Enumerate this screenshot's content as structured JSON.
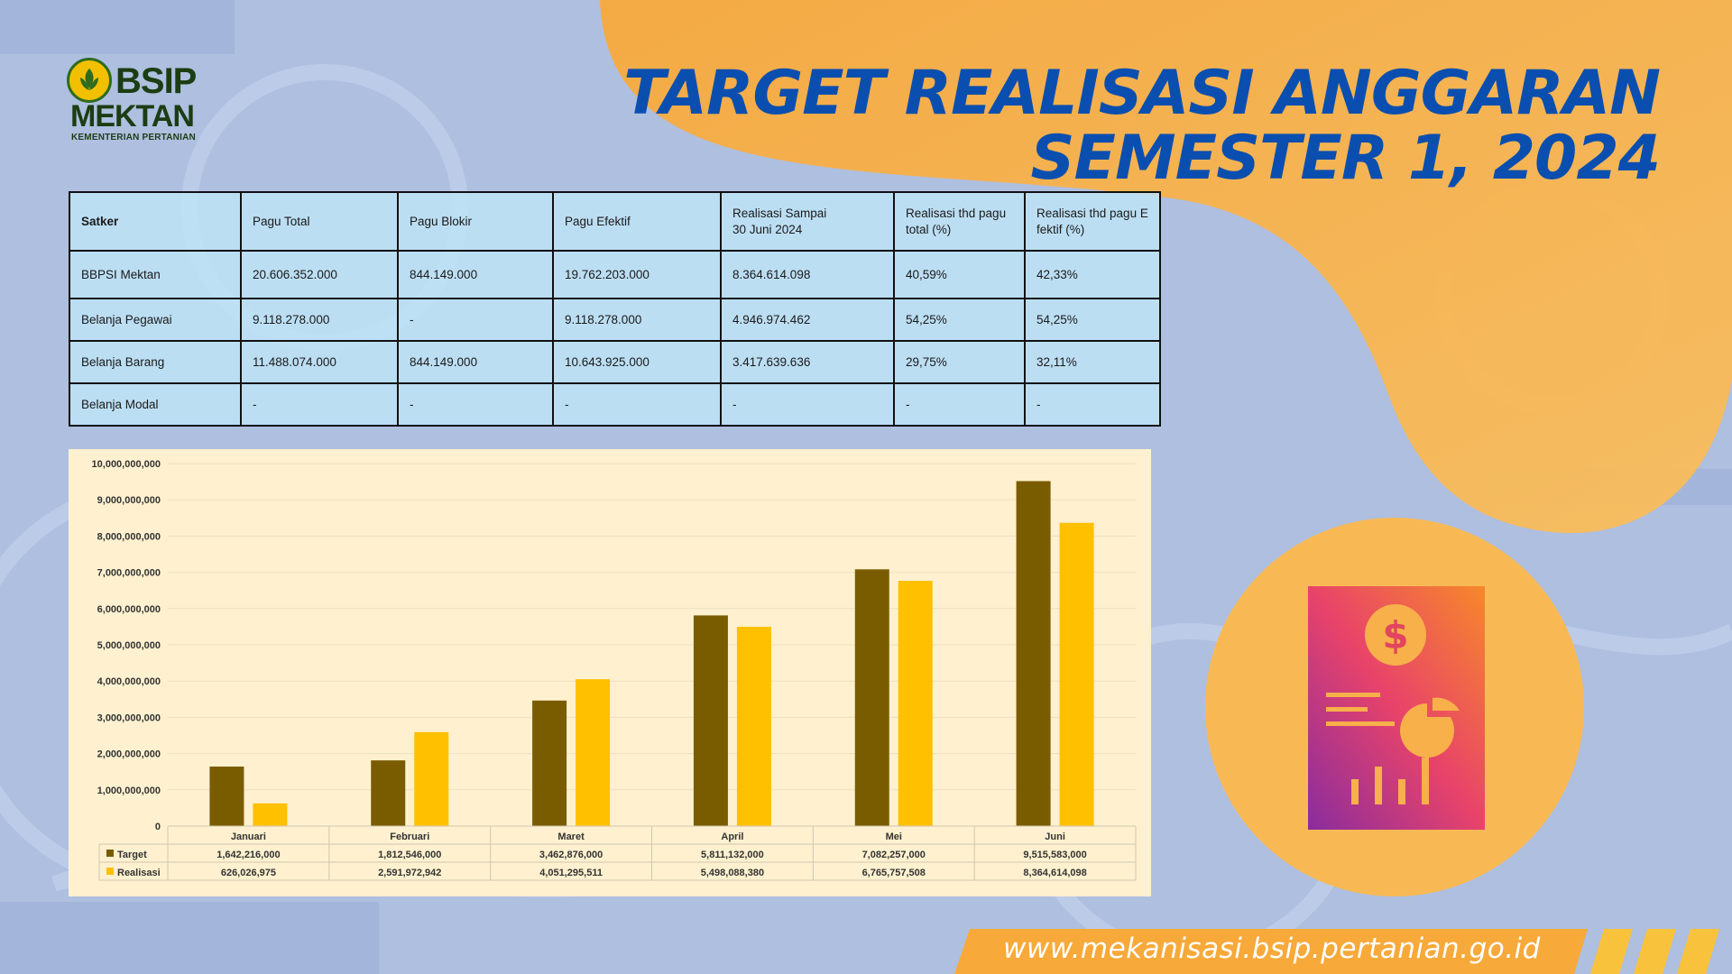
{
  "logo": {
    "brand_top": "BSIP",
    "brand_bottom": "MEKTAN",
    "ministry": "KEMENTERIAN PERTANIAN"
  },
  "title": {
    "line1": "TARGET REALISASI ANGGARAN",
    "line2": "SEMESTER 1, 2024"
  },
  "table": {
    "headers": [
      "Satker",
      "Pagu Total",
      "Pagu Blokir",
      "Pagu Efektif",
      "Realisasi Sampai\n30 Juni 2024",
      "Realisasi thd pagu\ntotal (%)",
      "Realisasi thd pagu E\nfektif  (%)"
    ],
    "rows": [
      [
        "BBPSI  Mektan",
        "20.606.352.000",
        "844.149.000",
        "19.762.203.000",
        "8.364.614.098",
        "40,59%",
        "42,33%"
      ],
      [
        "Belanja Pegawai",
        "9.118.278.000",
        "-",
        "9.118.278.000",
        "4.946.974.462",
        "54,25%",
        "54,25%"
      ],
      [
        "Belanja Barang",
        "11.488.074.000",
        "844.149.000",
        "10.643.925.000",
        "3.417.639.636",
        "29,75%",
        "32,11%"
      ],
      [
        "Belanja Modal",
        "-",
        "-",
        "-",
        "-",
        "-",
        "-"
      ]
    ]
  },
  "chart_data": {
    "type": "bar",
    "categories": [
      "Januari",
      "Februari",
      "Maret",
      "April",
      "Mei",
      "Juni"
    ],
    "series": [
      {
        "name": "Target",
        "color": "#7a5c00",
        "values": [
          1642216000,
          1812546000,
          3462876000,
          5811132000,
          7082257000,
          9515583000
        ],
        "labels": [
          "1,642,216,000",
          "1,812,546,000",
          "3,462,876,000",
          "5,811,132,000",
          "7,082,257,000",
          "9,515,583,000"
        ]
      },
      {
        "name": "Realisasi",
        "color": "#ffc000",
        "values": [
          626026975,
          2591972942,
          4051295511,
          5498088380,
          6765757508,
          8364614098
        ],
        "labels": [
          "626,026,975",
          "2,591,972,942",
          "4,051,295,511",
          "5,498,088,380",
          "6,765,757,508",
          "8,364,614,098"
        ]
      }
    ],
    "yticks": [
      "0",
      "1,000,000,000",
      "2,000,000,000",
      "3,000,000,000",
      "4,000,000,000",
      "5,000,000,000",
      "6,000,000,000",
      "7,000,000,000",
      "8,000,000,000",
      "9,000,000,000",
      "10,000,000,000"
    ],
    "ylim": [
      0,
      10000000000
    ],
    "grid": true,
    "legend": "data-table-below"
  },
  "icon": {
    "name": "financial-report-icon",
    "symbol": "$"
  },
  "footer": {
    "url": "www.mekanisasi.bsip.pertanian.go.id"
  },
  "colors": {
    "title_blue": "#0a4fb0",
    "orange_blob": "#f8b04a",
    "target_bar": "#7a5c00",
    "realisasi_bar": "#ffc000"
  }
}
